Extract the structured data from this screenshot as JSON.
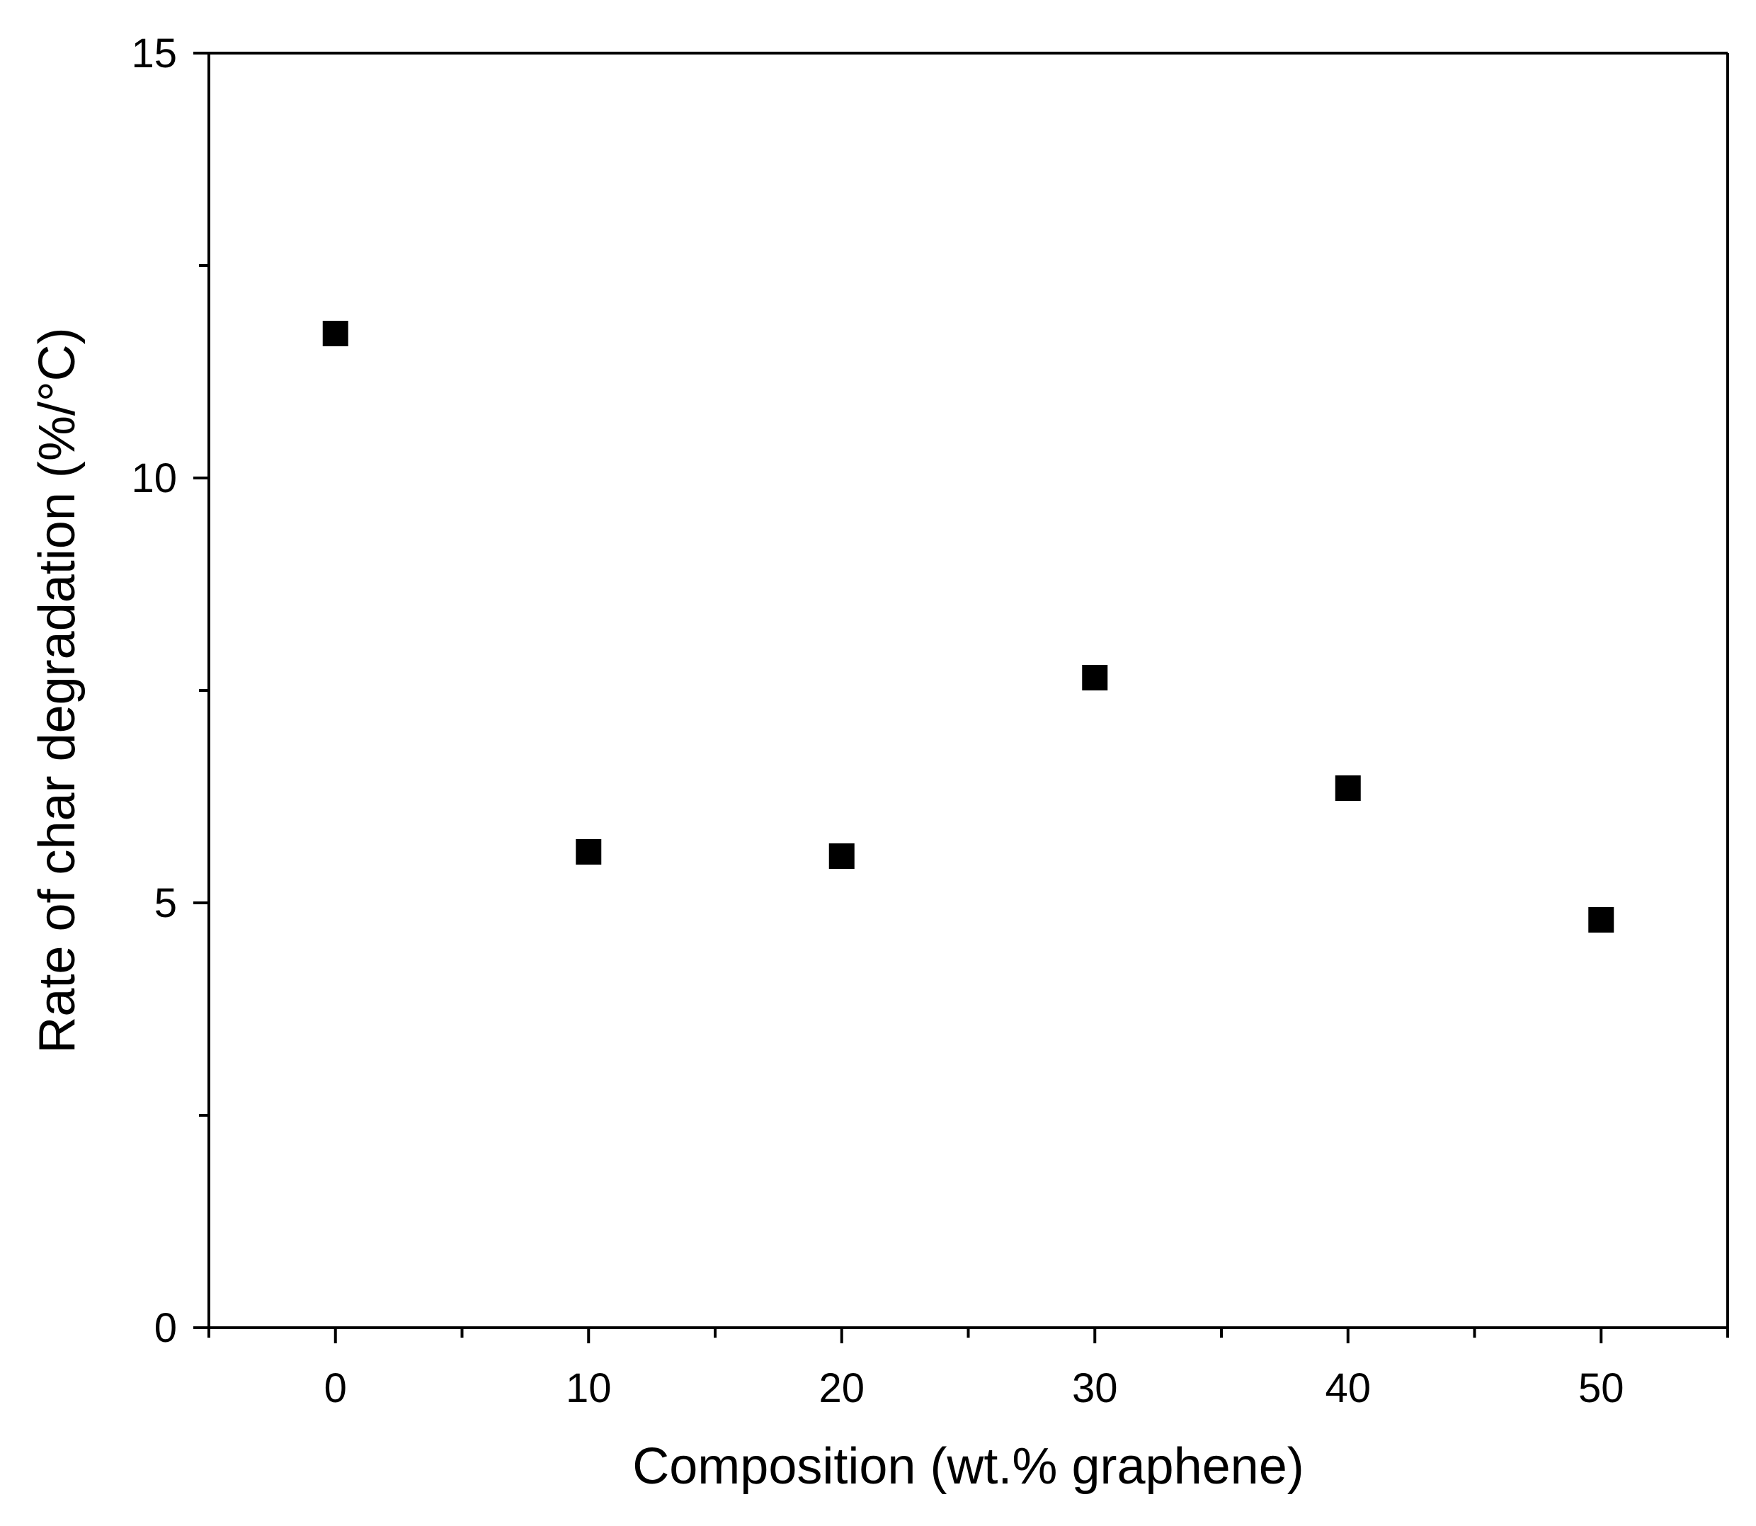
{
  "chart_data": {
    "type": "scatter",
    "xlabel": "Composition (wt.% graphene)",
    "ylabel": "Rate of char degradation (%/°C)",
    "xlim": [
      -5,
      55
    ],
    "ylim": [
      0,
      15
    ],
    "x_ticks": [
      0,
      10,
      20,
      30,
      40,
      50
    ],
    "x_minor_ticks": [
      -5,
      5,
      15,
      25,
      35,
      45,
      55
    ],
    "y_ticks": [
      0,
      5,
      10,
      15
    ],
    "y_minor_ticks": [
      2.5,
      7.5,
      12.5
    ],
    "marker": "square",
    "color": "#000000",
    "grid": false,
    "series": [
      {
        "x": [
          0,
          10,
          20,
          30,
          40,
          50
        ],
        "y": [
          11.7,
          5.6,
          5.55,
          7.65,
          6.35,
          4.8
        ]
      }
    ]
  }
}
